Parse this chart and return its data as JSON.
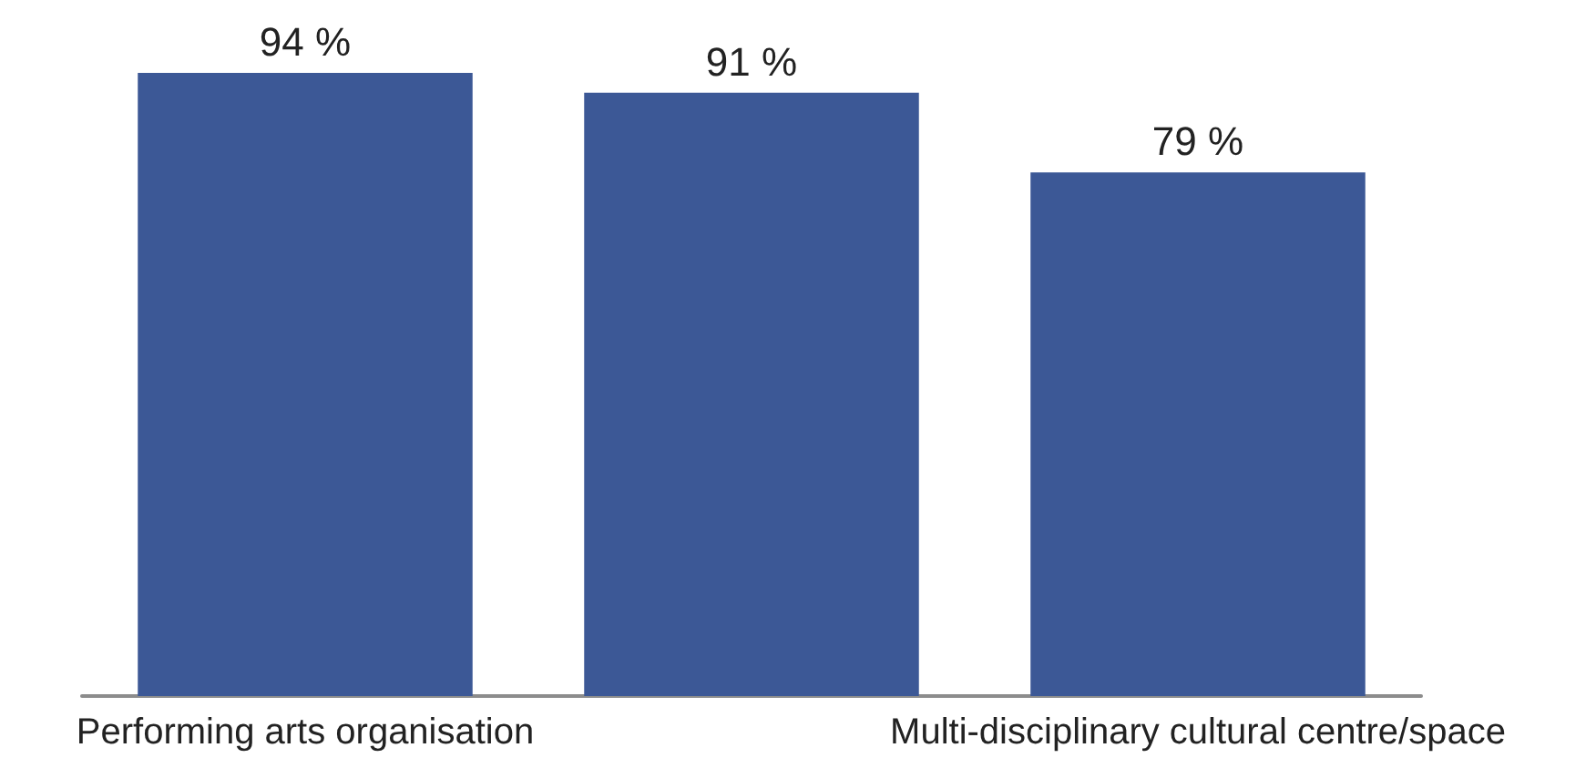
{
  "chart_data": {
    "type": "bar",
    "categories": [
      "Performing arts organisation",
      null,
      "Multi-disciplinary cultural centre/space"
    ],
    "values": [
      94,
      91,
      79
    ],
    "value_labels": [
      "94 %",
      "91 %",
      "79 %"
    ],
    "color": "#3c5896"
  }
}
